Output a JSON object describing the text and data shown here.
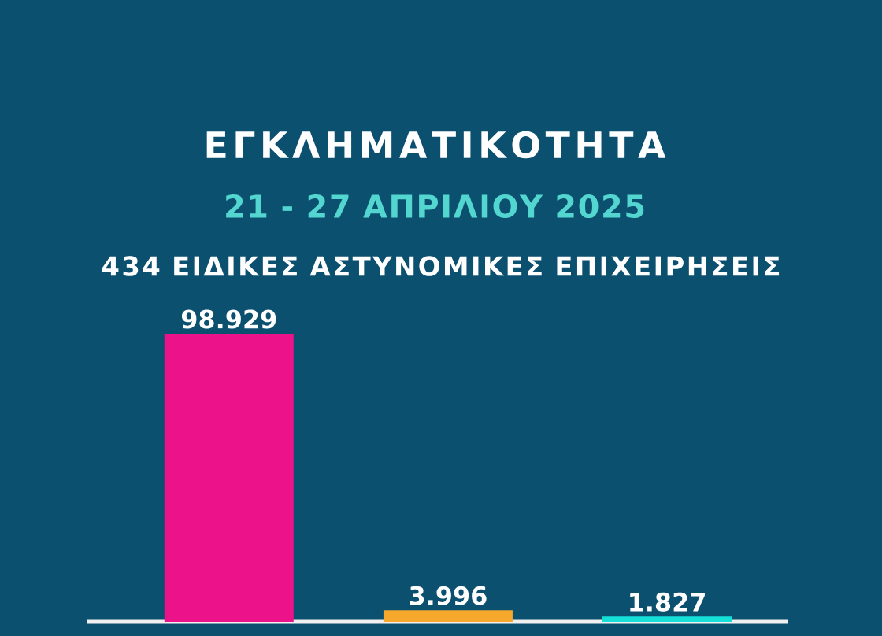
{
  "chart_data": {
    "type": "bar",
    "title": "ΕΓΚΛΗΜΑΤΙΚΟΤΗΤΑ",
    "subtitle": "21 - 27 ΑΠΡΙΛΙΟΥ 2025",
    "annotations": [
      "434 ΕΙΔΙΚΕΣ ΑΣΤΥΝΟΜΙΚΕΣ ΕΠΙΧΕΙΡΗΣΕΙΣ"
    ],
    "categories": [
      null,
      null,
      null
    ],
    "values": [
      98929,
      3996,
      1827
    ],
    "colors": [
      "#ec1289",
      "#f5a82c",
      "#14e0d8"
    ],
    "value_labels": [
      "98.929",
      "3.996",
      "1.827"
    ],
    "ylim": [
      0,
      100000
    ]
  }
}
